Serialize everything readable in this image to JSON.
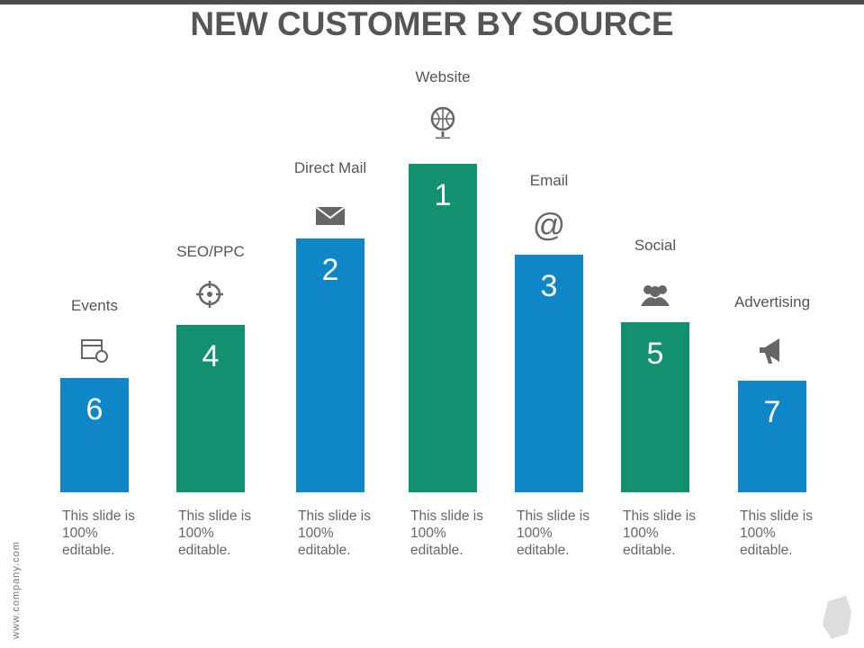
{
  "header": {
    "title": "NEW CUSTOMER BY SOURCE"
  },
  "items": [
    {
      "label": "Events",
      "rank": "6",
      "description": "This slide is 100% editable."
    },
    {
      "label": "SEO/PPC",
      "rank": "4",
      "description": "This slide is 100% editable."
    },
    {
      "label": "Direct Mail",
      "rank": "2",
      "description": "This slide is 100% editable."
    },
    {
      "label": "Website",
      "rank": "1",
      "description": "This slide is 100% editable."
    },
    {
      "label": "Email",
      "rank": "3",
      "description": "This slide is 100% editable."
    },
    {
      "label": "Social",
      "rank": "5",
      "description": "This slide is 100% editable."
    },
    {
      "label": "Advertising",
      "rank": "7",
      "description": "This slide is 100% editable."
    }
  ],
  "footer": {
    "website": "www.company.com"
  }
}
